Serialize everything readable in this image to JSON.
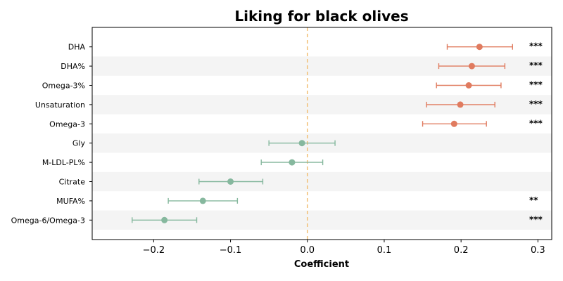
{
  "chart_data": {
    "type": "forest",
    "title": "Liking for black olives",
    "xlabel": "Coefficient",
    "xlim": [
      -0.28,
      0.318
    ],
    "xticks": [
      -0.2,
      -0.1,
      0.0,
      0.1,
      0.2,
      0.3
    ],
    "xtick_labels": [
      "−0.2",
      "−0.1",
      "0.0",
      "0.1",
      "0.2",
      "0.3"
    ],
    "reference_line": 0.0,
    "colors": {
      "positive": "#e07b5f",
      "negative": "#86b89e",
      "reference": "#f2c27c",
      "band": "#f4f4f4"
    },
    "rows": [
      {
        "label": "DHA",
        "estimate": 0.224,
        "lower": 0.182,
        "upper": 0.267,
        "sig": "***"
      },
      {
        "label": "DHA%",
        "estimate": 0.214,
        "lower": 0.171,
        "upper": 0.257,
        "sig": "***"
      },
      {
        "label": "Omega-3%",
        "estimate": 0.21,
        "lower": 0.168,
        "upper": 0.252,
        "sig": "***"
      },
      {
        "label": "Unsaturation",
        "estimate": 0.199,
        "lower": 0.155,
        "upper": 0.244,
        "sig": "***"
      },
      {
        "label": "Omega-3",
        "estimate": 0.191,
        "lower": 0.15,
        "upper": 0.233,
        "sig": "***"
      },
      {
        "label": "Gly",
        "estimate": -0.007,
        "lower": -0.05,
        "upper": 0.036,
        "sig": ""
      },
      {
        "label": "M-LDL-PL%",
        "estimate": -0.02,
        "lower": -0.06,
        "upper": 0.02,
        "sig": ""
      },
      {
        "label": "Citrate",
        "estimate": -0.1,
        "lower": -0.141,
        "upper": -0.058,
        "sig": ""
      },
      {
        "label": "MUFA%",
        "estimate": -0.136,
        "lower": -0.181,
        "upper": -0.091,
        "sig": "**"
      },
      {
        "label": "Omega-6/Omega-3",
        "estimate": -0.186,
        "lower": -0.228,
        "upper": -0.144,
        "sig": "***"
      }
    ]
  }
}
